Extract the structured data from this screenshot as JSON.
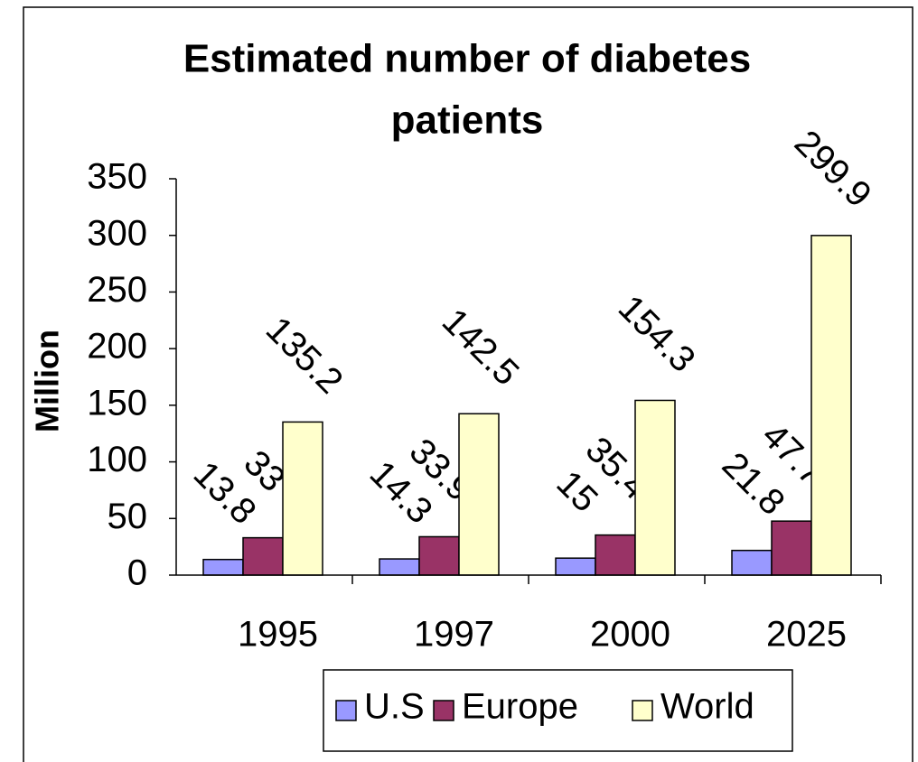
{
  "chart_data": {
    "type": "bar",
    "title": "Estimated number of diabetes patients",
    "title_lines": [
      "Estimated number of diabetes",
      "patients"
    ],
    "ylabel": "Million",
    "categories": [
      "1995",
      "1997",
      "2000",
      "2025"
    ],
    "series": [
      {
        "name": "U.S",
        "color": "#9999ff",
        "values": [
          13.8,
          14.3,
          15,
          21.8
        ]
      },
      {
        "name": "Europe",
        "color": "#993366",
        "values": [
          33,
          33.9,
          35.4,
          47.7
        ]
      },
      {
        "name": "World",
        "color": "#ffffcc",
        "values": [
          135.2,
          142.5,
          154.3,
          299.9
        ]
      }
    ],
    "ylim": [
      0,
      350
    ],
    "yticks": [
      0,
      50,
      100,
      150,
      200,
      250,
      300,
      350
    ],
    "grid": false,
    "legend": "bottom"
  }
}
